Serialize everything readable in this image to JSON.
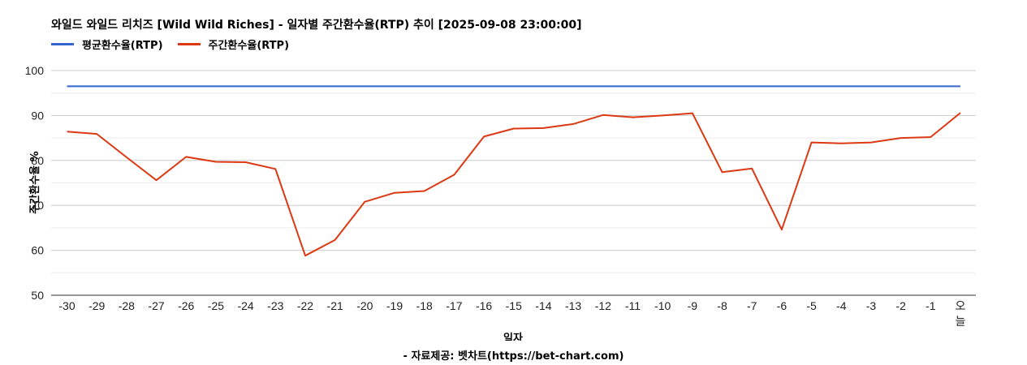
{
  "title": "와일드 와일드 리치즈 [Wild Wild Riches] - 일자별 주간환수율(RTP) 추이 [2025-09-08 23:00:00]",
  "source": "- 자료제공: 벳차트(https://bet-chart.com)",
  "chart_data": {
    "type": "line",
    "xlabel": "일자",
    "ylabel": "주간환수율 %",
    "ylim": [
      50,
      100
    ],
    "yticks": [
      50,
      60,
      70,
      80,
      90,
      100
    ],
    "grid": true,
    "legend_position": "top-left",
    "categories": [
      "-30",
      "-29",
      "-28",
      "-27",
      "-26",
      "-25",
      "-24",
      "-23",
      "-22",
      "-21",
      "-20",
      "-19",
      "-18",
      "-17",
      "-16",
      "-15",
      "-14",
      "-13",
      "-12",
      "-11",
      "-10",
      "-9",
      "-8",
      "-7",
      "-6",
      "-5",
      "-4",
      "-3",
      "-2",
      "-1",
      "오늘"
    ],
    "series": [
      {
        "name": "평균환수율(RTP)",
        "color": "#3366cc",
        "values": [
          96.5,
          96.5,
          96.5,
          96.5,
          96.5,
          96.5,
          96.5,
          96.5,
          96.5,
          96.5,
          96.5,
          96.5,
          96.5,
          96.5,
          96.5,
          96.5,
          96.5,
          96.5,
          96.5,
          96.5,
          96.5,
          96.5,
          96.5,
          96.5,
          96.5,
          96.5,
          96.5,
          96.5,
          96.5,
          96.5,
          96.5
        ]
      },
      {
        "name": "주간환수율(RTP)",
        "color": "#dc3912",
        "values": [
          86.4,
          85.9,
          80.7,
          75.6,
          80.8,
          79.7,
          79.6,
          78.1,
          58.8,
          62.3,
          70.8,
          72.8,
          73.2,
          76.8,
          85.3,
          87.1,
          87.2,
          88.1,
          90.1,
          89.6,
          90.0,
          90.5,
          77.4,
          78.2,
          64.6,
          84.0,
          83.8,
          84.0,
          85.0,
          85.2,
          90.6
        ]
      }
    ]
  }
}
